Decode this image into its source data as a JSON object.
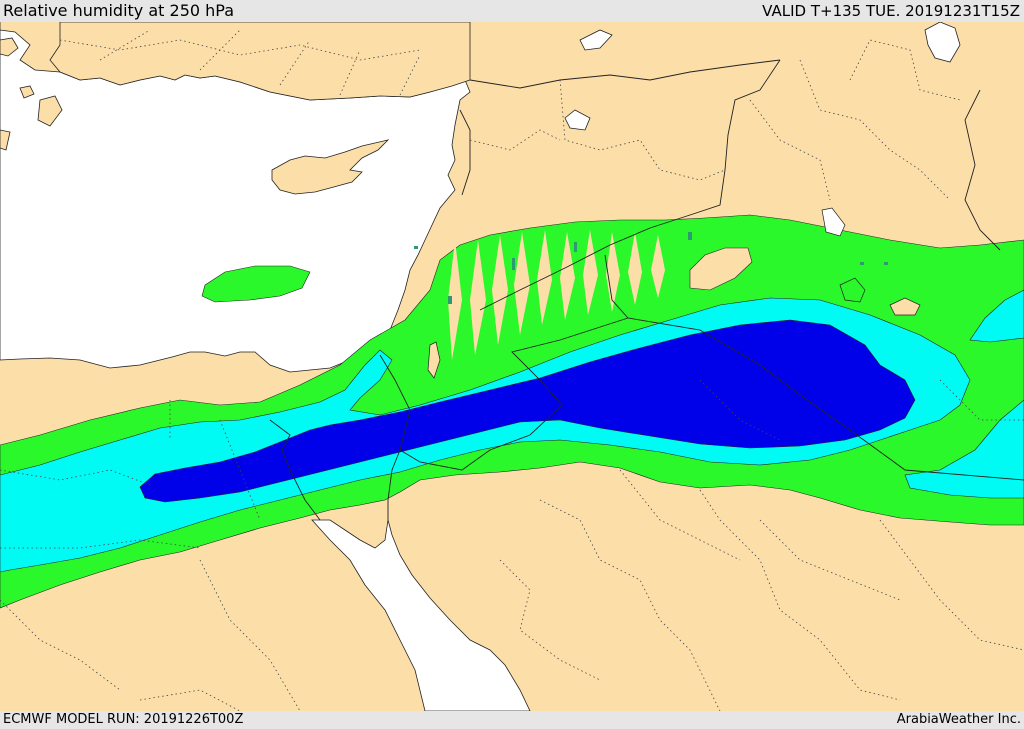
{
  "header": {
    "title": "Relative humidity at 250 hPa",
    "valid": "VALID T+135 TUE. 20191231T15Z"
  },
  "footer": {
    "model_run": "ECMWF MODEL RUN: 20191226T00Z",
    "credit": "ArabiaWeather Inc."
  },
  "map": {
    "colors": {
      "land": "#fcdea8",
      "sea": "#ffffff",
      "rh_low": "#2af82a",
      "rh_mid": "#00fbf5",
      "rh_high": "#0000e9",
      "spot": "#2d9a72",
      "border": "#222222"
    }
  }
}
